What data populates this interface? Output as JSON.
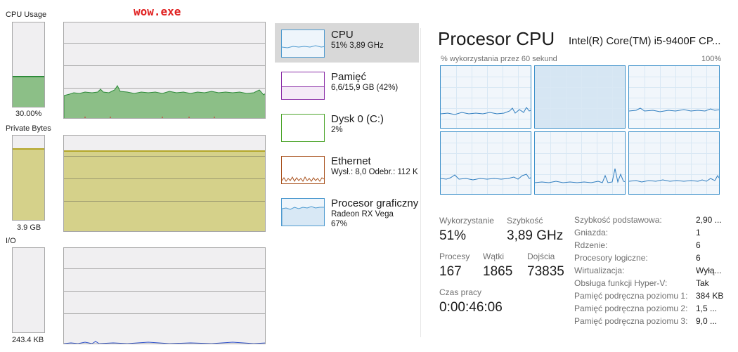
{
  "left_panel": {
    "title": "wow.exe",
    "cpu": {
      "label": "CPU Usage",
      "value_text": "30.00%",
      "fill_fraction": 0.35
    },
    "private_bytes": {
      "label": "Private Bytes",
      "value_text": "3.9 GB",
      "fill_fraction": 0.82
    },
    "io": {
      "label": "I/O",
      "value_text": "243.4  KB",
      "fill_fraction": 0.0
    }
  },
  "sidebar": {
    "items": [
      {
        "title": "CPU",
        "sub1": "51% 3,89 GHz",
        "sub2": "",
        "sub3": "",
        "color": "#4f9bd0",
        "selected": true
      },
      {
        "title": "Pamięć",
        "sub1": "6,6/15,9 GB (42%)",
        "sub2": "",
        "sub3": "",
        "color": "#8b2fa8",
        "selected": false
      },
      {
        "title": "Dysk 0 (C:)",
        "sub1": "2%",
        "sub2": "",
        "sub3": "",
        "color": "#4da52b",
        "selected": false
      },
      {
        "title": "Ethernet",
        "sub1": "Wysł.: 8,0  Odebr.: 112 K",
        "sub2": "",
        "sub3": "",
        "color": "#a9531f",
        "selected": false
      },
      {
        "title": "Procesor graficzny",
        "sub1": "Radeon RX Vega",
        "sub2": "67%",
        "sub3": "",
        "color": "#4f9bd0",
        "selected": false
      }
    ]
  },
  "main": {
    "title": "Procesor CPU",
    "model": "Intel(R) Core(TM) i5-9400F CP...",
    "graph_label": "% wykorzystania przez 60 sekund",
    "graph_max": "100%",
    "stats": {
      "utilization_label": "Wykorzystanie",
      "utilization_value": "51%",
      "speed_label": "Szybkość",
      "speed_value": "3,89 GHz",
      "processes_label": "Procesy",
      "processes_value": "167",
      "threads_label": "Wątki",
      "threads_value": "1865",
      "handles_label": "Dojścia",
      "handles_value": "73835",
      "uptime_label": "Czas pracy",
      "uptime_value": "0:00:46:06"
    },
    "specs": [
      {
        "key": "Szybkość podstawowa:",
        "value": "2,90 ..."
      },
      {
        "key": "Gniazda:",
        "value": "1"
      },
      {
        "key": "Rdzenie:",
        "value": "6"
      },
      {
        "key": "Procesory logiczne:",
        "value": "6"
      },
      {
        "key": "Wirtualizacja:",
        "value": "Wyłą..."
      },
      {
        "key": "Obsługa funkcji Hyper-V:",
        "value": "Tak"
      },
      {
        "key": "Pamięć podręczna poziomu 1:",
        "value": "384 KB"
      },
      {
        "key": "Pamięć podręczna poziomu 2:",
        "value": "1,5 ..."
      },
      {
        "key": "Pamięć podręczna poziomu 3:",
        "value": "9,0 ..."
      }
    ]
  },
  "colors": {
    "cpu_fill": "#8cbf87",
    "cpu_line": "#2e8b3a",
    "mem_fill": "#d5d18a",
    "mem_line": "#b3a628",
    "io_line": "#3355cc",
    "cpu_graph_line": "#2f7dbf"
  }
}
